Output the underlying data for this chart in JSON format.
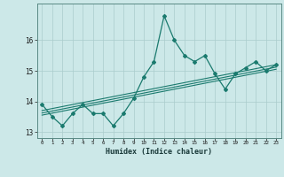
{
  "xlabel": "Humidex (Indice chaleur)",
  "bg_color": "#cce8e8",
  "line_color": "#1a7a6e",
  "grid_color": "#aacccc",
  "x_data": [
    0,
    1,
    2,
    3,
    4,
    5,
    6,
    7,
    8,
    9,
    10,
    11,
    12,
    13,
    14,
    15,
    16,
    17,
    18,
    19,
    20,
    21,
    22,
    23
  ],
  "y_main": [
    13.9,
    13.5,
    13.2,
    13.6,
    13.9,
    13.6,
    13.6,
    13.2,
    13.6,
    14.1,
    14.8,
    15.3,
    16.8,
    16.0,
    15.5,
    15.3,
    15.5,
    14.9,
    14.4,
    14.9,
    15.1,
    15.3,
    15.0,
    15.2
  ],
  "ylim": [
    12.8,
    17.2
  ],
  "xlim": [
    -0.5,
    23.5
  ],
  "yticks": [
    13,
    14,
    15,
    16
  ],
  "ytick_labels": [
    "13",
    "14",
    "15",
    "16"
  ],
  "xtick_labels": [
    "0",
    "1",
    "2",
    "3",
    "4",
    "5",
    "6",
    "7",
    "8",
    "9",
    "10",
    "11",
    "12",
    "13",
    "14",
    "15",
    "16",
    "17",
    "18",
    "19",
    "20",
    "21",
    "22",
    "23"
  ],
  "reg_endpoints": [
    [
      0,
      13.55,
      23,
      15.05
    ],
    [
      0,
      13.62,
      23,
      15.12
    ],
    [
      0,
      13.7,
      23,
      15.2
    ]
  ]
}
